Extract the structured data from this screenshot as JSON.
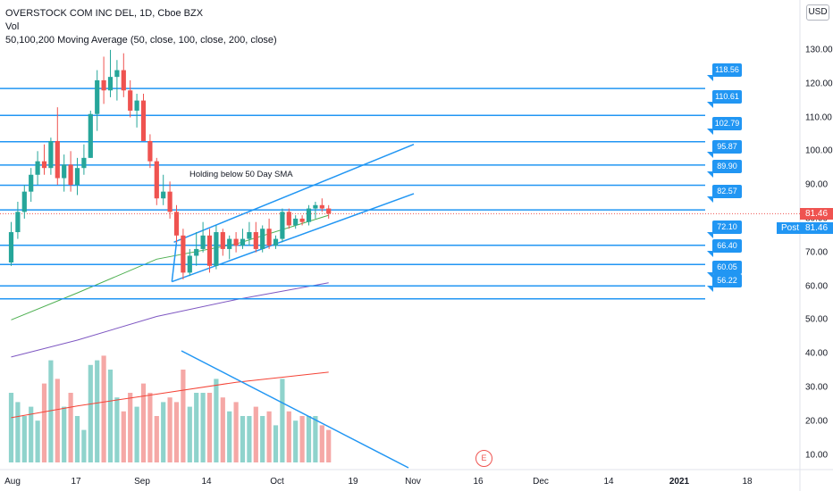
{
  "legend": {
    "title": "OVERSTOCK COM INC DEL, 1D, Cboe BZX",
    "vol_label": "Vol",
    "ma_label": "50,100,200 Moving Average (50, close, 100, close, 200, close)"
  },
  "currency_button": "USD",
  "annotation": "Holding below 50 Day SMA",
  "earnings_marker": "E",
  "last_price": "81.46",
  "post_market": {
    "label": "Post",
    "price": "81.46"
  },
  "colors": {
    "up": "#26a69a",
    "down": "#ef5350",
    "line_tool": "#2196f3",
    "sma50": "#4caf50",
    "sma100": "#7e57c2",
    "sma200": "#f44336"
  },
  "horizontal_levels": [
    "118.56",
    "110.61",
    "102.79",
    "95.87",
    "89.90",
    "82.57",
    "72.10",
    "66.40",
    "60.05",
    "56.22"
  ],
  "chart_data": {
    "type": "candlestick",
    "symbol": "OSTK",
    "exchange": "Cboe BZX",
    "interval": "1D",
    "y_ticks": [
      "130.00",
      "120.00",
      "110.00",
      "100.00",
      "90.00",
      "80.00",
      "70.00",
      "60.00",
      "50.00",
      "40.00",
      "30.00",
      "20.00",
      "10.00"
    ],
    "x_ticks": [
      {
        "label": "Aug",
        "bold": false
      },
      {
        "label": "17",
        "bold": false
      },
      {
        "label": "Sep",
        "bold": false
      },
      {
        "label": "14",
        "bold": false
      },
      {
        "label": "Oct",
        "bold": false
      },
      {
        "label": "19",
        "bold": false
      },
      {
        "label": "Nov",
        "bold": false
      },
      {
        "label": "16",
        "bold": false
      },
      {
        "label": "Dec",
        "bold": false
      },
      {
        "label": "14",
        "bold": false
      },
      {
        "label": "2021",
        "bold": true
      },
      {
        "label": "18",
        "bold": false
      }
    ],
    "candles": [
      {
        "o": 67,
        "h": 79,
        "l": 66,
        "c": 76
      },
      {
        "o": 76,
        "h": 85,
        "l": 74,
        "c": 82
      },
      {
        "o": 82,
        "h": 90,
        "l": 80,
        "c": 88
      },
      {
        "o": 88,
        "h": 95,
        "l": 85,
        "c": 93
      },
      {
        "o": 93,
        "h": 100,
        "l": 90,
        "c": 97
      },
      {
        "o": 97,
        "h": 102,
        "l": 93,
        "c": 95
      },
      {
        "o": 95,
        "h": 104,
        "l": 93,
        "c": 103
      },
      {
        "o": 103,
        "h": 113,
        "l": 90,
        "c": 92
      },
      {
        "o": 92,
        "h": 99,
        "l": 88,
        "c": 96
      },
      {
        "o": 96,
        "h": 100,
        "l": 88,
        "c": 90
      },
      {
        "o": 90,
        "h": 98,
        "l": 87,
        "c": 95
      },
      {
        "o": 95,
        "h": 102,
        "l": 93,
        "c": 98
      },
      {
        "o": 98,
        "h": 112,
        "l": 98,
        "c": 111
      },
      {
        "o": 111,
        "h": 124,
        "l": 106,
        "c": 121
      },
      {
        "o": 121,
        "h": 128,
        "l": 114,
        "c": 118
      },
      {
        "o": 118,
        "h": 130,
        "l": 116,
        "c": 122
      },
      {
        "o": 122,
        "h": 127,
        "l": 115,
        "c": 124
      },
      {
        "o": 124,
        "h": 129,
        "l": 116,
        "c": 118
      },
      {
        "o": 118,
        "h": 121,
        "l": 110,
        "c": 112
      },
      {
        "o": 112,
        "h": 117,
        "l": 107,
        "c": 115
      },
      {
        "o": 115,
        "h": 117,
        "l": 103,
        "c": 103
      },
      {
        "o": 103,
        "h": 105,
        "l": 95,
        "c": 97
      },
      {
        "o": 97,
        "h": 98,
        "l": 84,
        "c": 86
      },
      {
        "o": 86,
        "h": 93,
        "l": 84,
        "c": 88
      },
      {
        "o": 88,
        "h": 91,
        "l": 80,
        "c": 82
      },
      {
        "o": 82,
        "h": 84,
        "l": 73,
        "c": 75
      },
      {
        "o": 75,
        "h": 77,
        "l": 62,
        "c": 64
      },
      {
        "o": 64,
        "h": 71,
        "l": 63,
        "c": 69
      },
      {
        "o": 69,
        "h": 76,
        "l": 66,
        "c": 71
      },
      {
        "o": 71,
        "h": 79,
        "l": 70,
        "c": 75
      },
      {
        "o": 75,
        "h": 77,
        "l": 64,
        "c": 66
      },
      {
        "o": 66,
        "h": 78,
        "l": 65,
        "c": 76
      },
      {
        "o": 76,
        "h": 77,
        "l": 69,
        "c": 71
      },
      {
        "o": 71,
        "h": 75,
        "l": 68,
        "c": 74
      },
      {
        "o": 74,
        "h": 76,
        "l": 70,
        "c": 72
      },
      {
        "o": 72,
        "h": 77,
        "l": 71,
        "c": 74
      },
      {
        "o": 74,
        "h": 79,
        "l": 72,
        "c": 76
      },
      {
        "o": 76,
        "h": 79,
        "l": 70,
        "c": 71
      },
      {
        "o": 71,
        "h": 78,
        "l": 70,
        "c": 77
      },
      {
        "o": 77,
        "h": 80,
        "l": 71,
        "c": 72
      },
      {
        "o": 72,
        "h": 75,
        "l": 71,
        "c": 74
      },
      {
        "o": 74,
        "h": 83,
        "l": 73,
        "c": 82
      },
      {
        "o": 82,
        "h": 83,
        "l": 77,
        "c": 78
      },
      {
        "o": 78,
        "h": 81,
        "l": 77,
        "c": 80
      },
      {
        "o": 80,
        "h": 81,
        "l": 78,
        "c": 79
      },
      {
        "o": 79,
        "h": 84,
        "l": 78,
        "c": 83
      },
      {
        "o": 83,
        "h": 85,
        "l": 80,
        "c": 84
      },
      {
        "o": 84,
        "h": 86,
        "l": 82,
        "c": 83
      },
      {
        "o": 83,
        "h": 84,
        "l": 80,
        "c": 81.46
      }
    ],
    "volume_relative": [
      0.3,
      0.26,
      0.2,
      0.24,
      0.18,
      0.34,
      0.44,
      0.36,
      0.24,
      0.3,
      0.2,
      0.14,
      0.42,
      0.44,
      0.46,
      0.4,
      0.28,
      0.22,
      0.3,
      0.24,
      0.34,
      0.3,
      0.2,
      0.26,
      0.28,
      0.26,
      0.4,
      0.24,
      0.3,
      0.3,
      0.3,
      0.36,
      0.28,
      0.22,
      0.26,
      0.2,
      0.2,
      0.24,
      0.2,
      0.22,
      0.16,
      0.36,
      0.22,
      0.18,
      0.2,
      0.2,
      0.2,
      0.16,
      0.14
    ],
    "sma50": [
      [
        0,
        50
      ],
      [
        10,
        58
      ],
      [
        22,
        68
      ],
      [
        34,
        72.5
      ],
      [
        48,
        81
      ]
    ],
    "sma100": [
      [
        0,
        39
      ],
      [
        10,
        44
      ],
      [
        22,
        51
      ],
      [
        34,
        56
      ],
      [
        48,
        61
      ]
    ],
    "sma200": [
      [
        0,
        21
      ],
      [
        10,
        24.5
      ],
      [
        22,
        28
      ],
      [
        34,
        31.5
      ],
      [
        48,
        34.5
      ]
    ]
  }
}
